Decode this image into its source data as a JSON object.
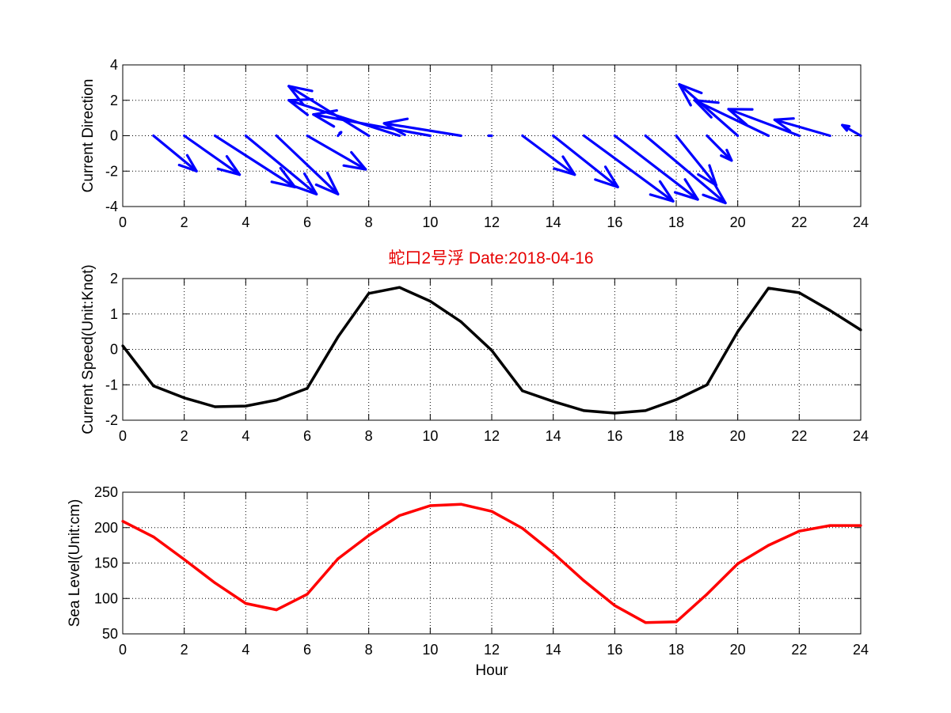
{
  "figure": {
    "title": "蛇口2号浮   Date:2018-04-16",
    "title_color": "#e60000"
  },
  "chart_data": [
    {
      "type": "quiver",
      "ylabel": "Current Direction",
      "xlim": [
        0,
        24
      ],
      "ylim": [
        -4,
        4
      ],
      "xticks": [
        "0",
        "2",
        "4",
        "6",
        "8",
        "10",
        "12",
        "14",
        "16",
        "18",
        "20",
        "22",
        "24"
      ],
      "yticks": [
        "-4",
        "-2",
        "0",
        "2",
        "4"
      ],
      "grid": true,
      "color": "#0000ff",
      "x": [
        1,
        2,
        3,
        4,
        5,
        6,
        7,
        8,
        9,
        10,
        11,
        12,
        13,
        14,
        15,
        16,
        17,
        18,
        19,
        20,
        21,
        22,
        23,
        24
      ],
      "u": [
        1.4,
        1.8,
        2.6,
        2.3,
        2.0,
        1.9,
        0.1,
        -2.6,
        -3.6,
        -3.8,
        -2.5,
        -0.1,
        1.7,
        2.1,
        2.9,
        2.7,
        2.6,
        1.3,
        0.8,
        -1.9,
        -2.4,
        -2.3,
        -1.8,
        -0.6
      ],
      "v": [
        -2.0,
        -2.2,
        -2.9,
        -3.3,
        -3.3,
        -1.9,
        0.2,
        2.8,
        2.0,
        1.2,
        0.7,
        0.0,
        -2.2,
        -2.9,
        -3.7,
        -3.6,
        -3.8,
        -2.8,
        -1.4,
        2.9,
        2.0,
        1.5,
        0.9,
        0.6
      ]
    },
    {
      "type": "line",
      "ylabel": "Current Speed(Unit:Knot)",
      "xlim": [
        0,
        24
      ],
      "ylim": [
        -2,
        2
      ],
      "xticks": [
        "0",
        "2",
        "4",
        "6",
        "8",
        "10",
        "12",
        "14",
        "16",
        "18",
        "20",
        "22",
        "24"
      ],
      "yticks": [
        "-2",
        "-1",
        "0",
        "1",
        "2"
      ],
      "grid": true,
      "color": "#000000",
      "x": [
        0,
        1,
        2,
        3,
        4,
        5,
        6,
        7,
        8,
        9,
        10,
        11,
        12,
        13,
        14,
        15,
        16,
        17,
        18,
        19,
        20,
        21,
        22,
        23,
        24
      ],
      "y": [
        0.1,
        -1.03,
        -1.37,
        -1.62,
        -1.6,
        -1.43,
        -1.1,
        0.35,
        1.58,
        1.75,
        1.36,
        0.78,
        -0.03,
        -1.17,
        -1.47,
        -1.73,
        -1.8,
        -1.73,
        -1.42,
        -1.0,
        0.5,
        1.73,
        1.6,
        1.1,
        0.55
      ]
    },
    {
      "type": "line",
      "ylabel": "Sea Level(Unit:cm)",
      "xlabel": "Hour",
      "xlim": [
        0,
        24
      ],
      "ylim": [
        50,
        250
      ],
      "xticks": [
        "0",
        "2",
        "4",
        "6",
        "8",
        "10",
        "12",
        "14",
        "16",
        "18",
        "20",
        "22",
        "24"
      ],
      "yticks": [
        "50",
        "100",
        "150",
        "200",
        "250"
      ],
      "grid": true,
      "color": "#ff0000",
      "x": [
        0,
        1,
        2,
        3,
        4,
        5,
        6,
        7,
        8,
        9,
        10,
        11,
        12,
        13,
        14,
        15,
        16,
        17,
        18,
        19,
        20,
        21,
        22,
        23,
        24
      ],
      "y": [
        209,
        187,
        155,
        122,
        93,
        84,
        106,
        156,
        189,
        217,
        231,
        233,
        223,
        199,
        164,
        125,
        90,
        66,
        67,
        106,
        149,
        175,
        195,
        203,
        203
      ]
    }
  ]
}
